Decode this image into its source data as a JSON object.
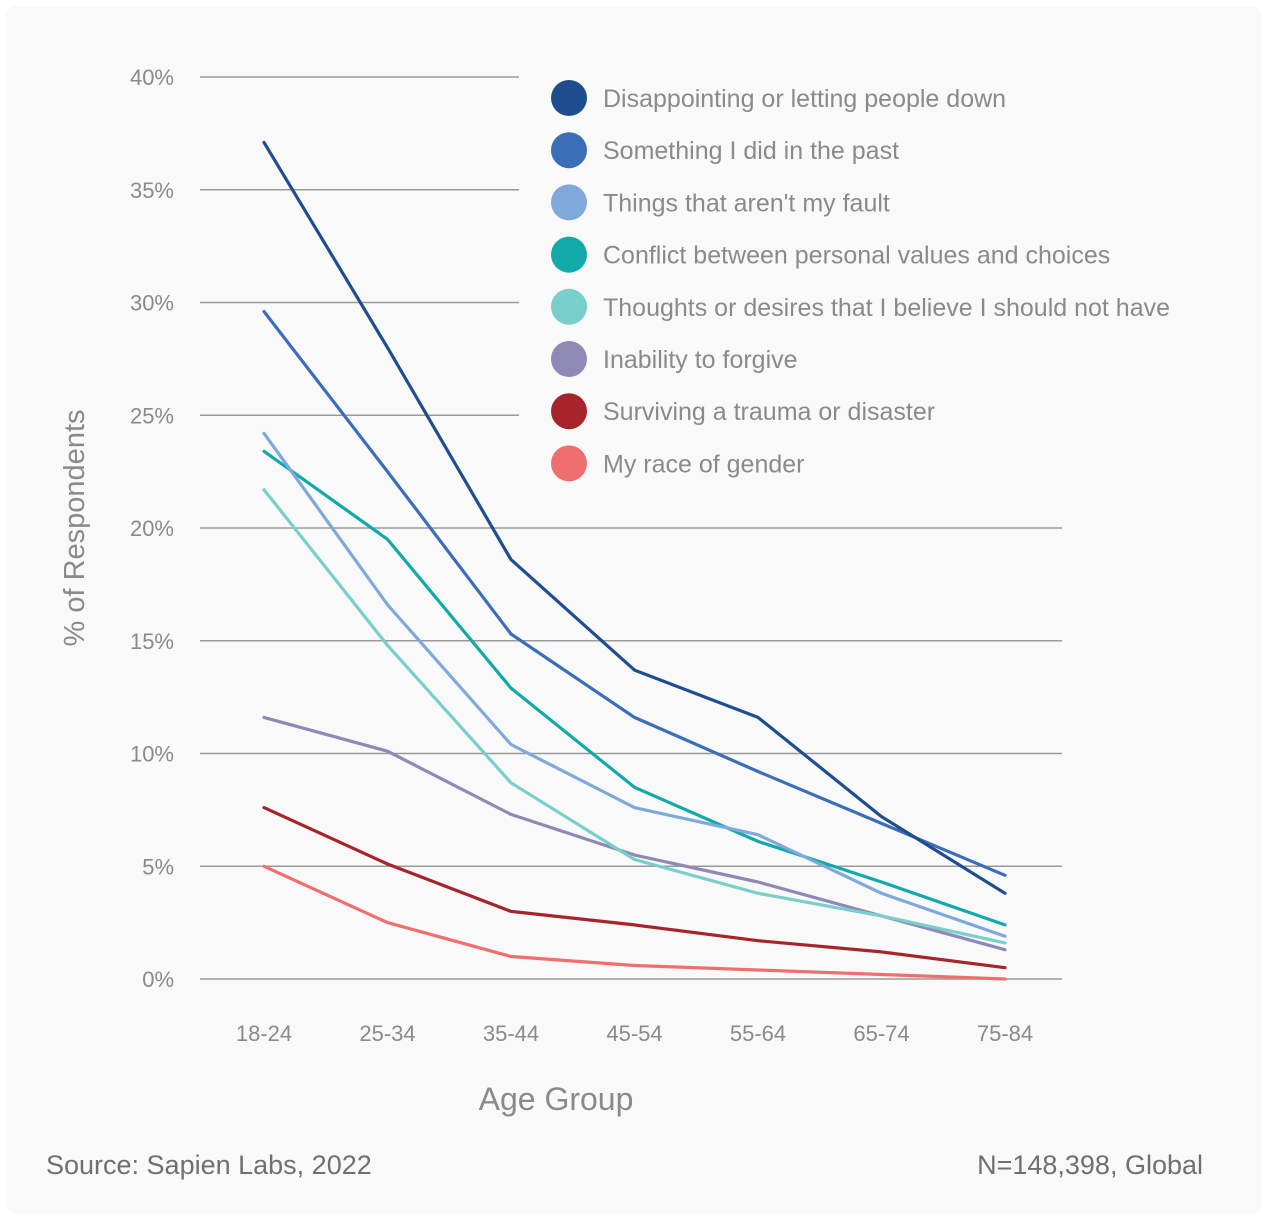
{
  "chart_data": {
    "type": "line",
    "xlabel": "Age Group",
    "ylabel": "% of Respondents",
    "categories": [
      "18-24",
      "25-34",
      "35-44",
      "45-54",
      "55-64",
      "65-74",
      "75-84"
    ],
    "ylim": [
      0,
      40
    ],
    "yticks": [
      0,
      5,
      10,
      15,
      20,
      25,
      30,
      35,
      40
    ],
    "ytick_labels": [
      "0%",
      "5%",
      "10%",
      "15%",
      "20%",
      "25%",
      "30%",
      "35%",
      "40%"
    ],
    "grid": true,
    "legend_position": "top-right",
    "series": [
      {
        "name": "Disappointing or letting people down",
        "color": "#1f4e8f",
        "values": [
          37.1,
          28.0,
          18.6,
          13.7,
          11.6,
          7.2,
          3.8
        ]
      },
      {
        "name": "Something I did in the past",
        "color": "#3a6fb8",
        "values": [
          29.6,
          22.5,
          15.3,
          11.6,
          9.2,
          6.9,
          4.6
        ]
      },
      {
        "name": "Things that aren't my fault",
        "color": "#7fa9da",
        "values": [
          24.2,
          16.6,
          10.4,
          7.6,
          6.4,
          3.8,
          1.9
        ]
      },
      {
        "name": "Conflict between personal values and choices",
        "color": "#12aaa8",
        "values": [
          23.4,
          19.5,
          12.9,
          8.5,
          6.1,
          4.3,
          2.4
        ]
      },
      {
        "name": "Thoughts or desires that I believe I should not have",
        "color": "#79cfcb",
        "values": [
          21.7,
          14.8,
          8.7,
          5.3,
          3.8,
          2.8,
          1.6
        ]
      },
      {
        "name": "Inability to forgive",
        "color": "#8e89b5",
        "values": [
          11.6,
          10.1,
          7.3,
          5.5,
          4.3,
          2.8,
          1.3
        ]
      },
      {
        "name": "Surviving a trauma or disaster",
        "color": "#a6242c",
        "values": [
          7.6,
          5.1,
          3.0,
          2.4,
          1.7,
          1.2,
          0.5
        ]
      },
      {
        "name": "My race of gender",
        "color": "#ef6f6f",
        "values": [
          5.0,
          2.5,
          1.0,
          0.6,
          0.4,
          0.2,
          0.0
        ]
      }
    ]
  },
  "footer": {
    "source": "Source: Sapien Labs, 2022",
    "sample": "N=148,398, Global"
  }
}
